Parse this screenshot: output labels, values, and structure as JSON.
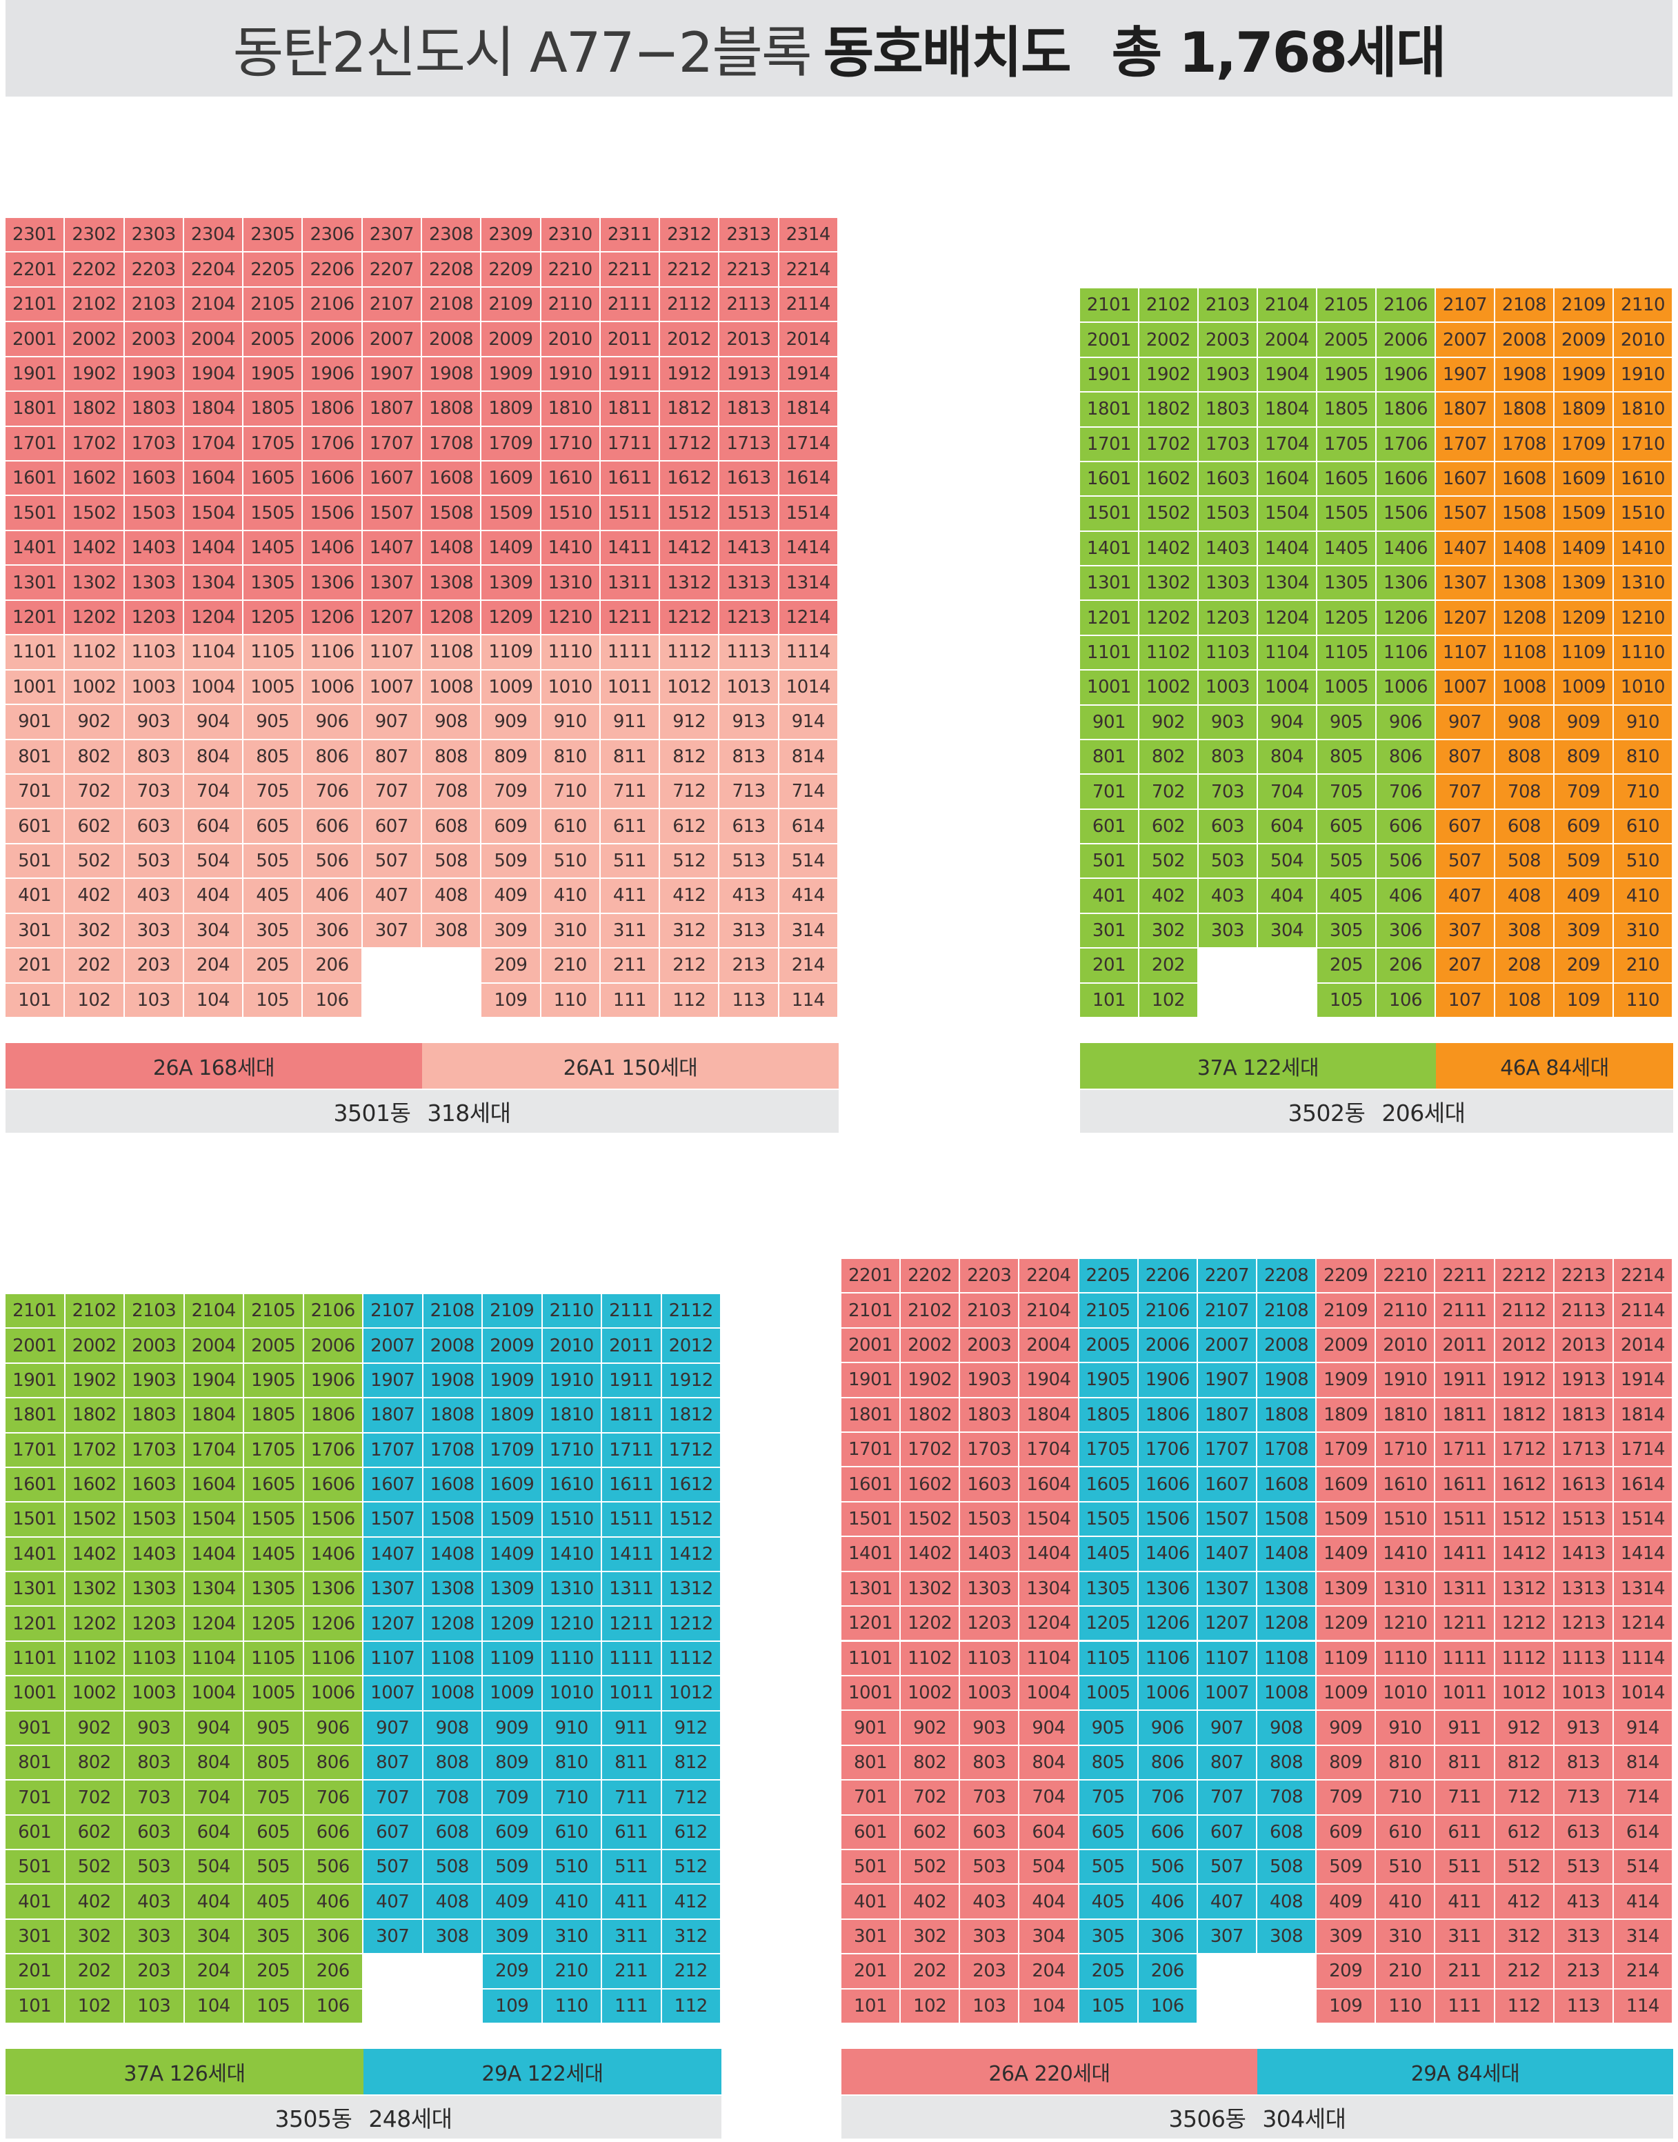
{
  "title": {
    "prefix": "동탄2신도시 A77−2블록",
    "bold": "동호배치도",
    "total": "총 1,768세대"
  },
  "colors": {
    "26A": "#f08080",
    "26A1": "#f8b5a8",
    "37A": "#8dc63f",
    "46A": "#f7941d",
    "29A": "#29bbd3"
  },
  "buildings": [
    {
      "id": "3501",
      "columns": [
        1,
        2,
        3,
        4,
        5,
        6,
        7,
        8,
        9,
        10,
        11,
        12,
        13,
        14
      ],
      "top_floor": 23,
      "type_by_floor_col": "26A floors 12-23 all columns; 26A1 floors 1-11",
      "missing": [
        [
          1,
          7
        ],
        [
          1,
          8
        ],
        [
          2,
          7
        ],
        [
          2,
          8
        ]
      ],
      "legend": [
        {
          "label": "26A 168세대",
          "type": "26A"
        },
        {
          "label": "26A1 150세대",
          "type": "26A1"
        }
      ],
      "total_label": "3501동",
      "total_count": "318세대"
    },
    {
      "id": "3502",
      "columns": [
        1,
        2,
        3,
        4,
        5,
        6,
        7,
        8,
        9,
        10
      ],
      "top_floor": 21,
      "type_by_floor_col": "37A columns 1-6; 46A columns 7-10",
      "missing": [
        [
          1,
          3
        ],
        [
          1,
          4
        ],
        [
          2,
          3
        ],
        [
          2,
          4
        ]
      ],
      "legend": [
        {
          "label": "37A 122세대",
          "type": "37A"
        },
        {
          "label": "46A 84세대",
          "type": "46A"
        }
      ],
      "total_label": "3502동",
      "total_count": "206세대"
    },
    {
      "id": "3505",
      "columns": [
        1,
        2,
        3,
        4,
        5,
        6,
        7,
        8,
        9,
        10,
        11,
        12
      ],
      "top_floor": 21,
      "type_by_floor_col": "37A columns 1-6; 29A columns 7-12",
      "missing": [
        [
          1,
          7
        ],
        [
          1,
          8
        ],
        [
          2,
          7
        ],
        [
          2,
          8
        ]
      ],
      "legend": [
        {
          "label": "37A 126세대",
          "type": "37A"
        },
        {
          "label": "29A 122세대",
          "type": "29A"
        }
      ],
      "total_label": "3505동",
      "total_count": "248세대"
    },
    {
      "id": "3506",
      "columns": [
        1,
        2,
        3,
        4,
        5,
        6,
        7,
        8,
        9,
        10,
        11,
        12,
        13,
        14
      ],
      "top_floor": 22,
      "type_by_floor_col": "26A columns 1-4 and 9-14; 29A columns 5-8",
      "missing": [
        [
          1,
          7
        ],
        [
          1,
          8
        ],
        [
          2,
          7
        ],
        [
          2,
          8
        ]
      ],
      "legend": [
        {
          "label": "26A 220세대",
          "type": "26A"
        },
        {
          "label": "29A 84세대",
          "type": "29A"
        }
      ],
      "total_label": "3506동",
      "total_count": "304세대"
    }
  ]
}
